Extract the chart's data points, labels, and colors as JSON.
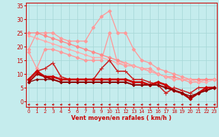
{
  "xlabel": "Vent moyen/en rafales ( km/h )",
  "bg_color": "#c5eced",
  "grid_color": "#a8d8d8",
  "text_color": "#cc0000",
  "ylim": [
    -2,
    36
  ],
  "xlim": [
    -0.3,
    23.3
  ],
  "yticks": [
    0,
    5,
    10,
    15,
    20,
    25,
    30,
    35
  ],
  "xticks": [
    0,
    1,
    2,
    3,
    4,
    5,
    6,
    7,
    8,
    9,
    10,
    11,
    12,
    13,
    14,
    15,
    16,
    17,
    18,
    19,
    20,
    21,
    22,
    23
  ],
  "series": [
    {
      "x": [
        0,
        1,
        2,
        3,
        4,
        5,
        6,
        7,
        8,
        9,
        10,
        11,
        12,
        13,
        14,
        15,
        16,
        17,
        18,
        19,
        20,
        21,
        22,
        23
      ],
      "y": [
        19,
        25,
        25,
        25,
        23,
        22,
        22,
        22,
        27,
        31,
        33,
        25,
        25,
        19,
        15,
        14,
        12,
        11,
        10,
        9,
        8,
        8,
        8,
        8
      ],
      "color": "#ff9999",
      "lw": 1.0,
      "marker": "D",
      "ms": 2.5
    },
    {
      "x": [
        0,
        1,
        2,
        3,
        4,
        5,
        6,
        7,
        8,
        9,
        10,
        11,
        12,
        13,
        14,
        15,
        16,
        17,
        18,
        19,
        20,
        21,
        22,
        23
      ],
      "y": [
        18,
        12,
        19,
        19,
        18,
        17,
        16,
        15,
        15,
        15,
        25,
        14,
        13,
        13,
        12,
        12,
        10,
        9,
        8,
        8,
        7,
        7,
        8,
        8
      ],
      "color": "#ff9999",
      "lw": 1.0,
      "marker": "D",
      "ms": 2.5
    },
    {
      "x": [
        0,
        1,
        2,
        3,
        4,
        5,
        6,
        7,
        8,
        9,
        10,
        11,
        12,
        13,
        14,
        15,
        16,
        17,
        18,
        19,
        20,
        21,
        22,
        23
      ],
      "y": [
        25,
        25,
        24,
        23,
        22,
        21,
        20,
        19,
        18,
        17,
        16,
        15,
        14,
        13,
        12,
        11,
        10,
        9,
        9,
        8,
        8,
        8,
        8,
        8
      ],
      "color": "#ff8888",
      "lw": 1.0,
      "marker": "D",
      "ms": 2.5
    },
    {
      "x": [
        0,
        1,
        2,
        3,
        4,
        5,
        6,
        7,
        8,
        9,
        10,
        11,
        12,
        13,
        14,
        15,
        16,
        17,
        18,
        19,
        20,
        21,
        22,
        23
      ],
      "y": [
        24,
        23,
        22,
        21,
        20,
        19,
        18,
        17,
        16,
        16,
        15,
        14,
        14,
        13,
        12,
        11,
        10,
        9,
        8,
        8,
        8,
        7,
        7,
        8
      ],
      "color": "#ffaaaa",
      "lw": 1.0,
      "marker": "D",
      "ms": 2.0
    },
    {
      "x": [
        0,
        1,
        2,
        3,
        4,
        5,
        6,
        7,
        8,
        9,
        10,
        11,
        12,
        13,
        14,
        15,
        16,
        17,
        18,
        19,
        20,
        21,
        22,
        23
      ],
      "y": [
        8,
        11,
        12,
        14,
        9,
        8,
        8,
        8,
        8,
        12,
        15,
        11,
        11,
        8,
        8,
        7,
        6,
        3,
        5,
        4,
        3,
        5,
        5,
        5
      ],
      "color": "#cc2222",
      "lw": 1.2,
      "marker": "+",
      "ms": 4
    },
    {
      "x": [
        0,
        1,
        2,
        3,
        4,
        5,
        6,
        7,
        8,
        9,
        10,
        11,
        12,
        13,
        14,
        15,
        16,
        17,
        18,
        19,
        20,
        21,
        22,
        23
      ],
      "y": [
        8,
        11,
        9,
        9,
        8,
        8,
        8,
        8,
        8,
        8,
        8,
        8,
        8,
        7,
        7,
        6,
        7,
        6,
        4,
        3,
        1,
        3,
        5,
        5
      ],
      "color": "#cc0000",
      "lw": 2.0,
      "marker": "D",
      "ms": 2.5
    },
    {
      "x": [
        0,
        1,
        2,
        3,
        4,
        5,
        6,
        7,
        8,
        9,
        10,
        11,
        12,
        13,
        14,
        15,
        16,
        17,
        18,
        19,
        20,
        21,
        22,
        23
      ],
      "y": [
        7,
        10,
        9,
        8,
        7,
        7,
        7,
        7,
        7,
        7,
        7,
        7,
        7,
        6,
        6,
        6,
        6,
        5,
        4,
        3,
        1,
        3,
        4,
        5
      ],
      "color": "#aa0000",
      "lw": 1.5,
      "marker": "D",
      "ms": 2.0
    },
    {
      "x": [
        0,
        1,
        2,
        3,
        4,
        5,
        6,
        7,
        8,
        9,
        10,
        11,
        12,
        13,
        14,
        15,
        16,
        17,
        18,
        19,
        20,
        21,
        22,
        23
      ],
      "y": [
        7,
        8,
        8,
        8,
        7,
        7,
        7,
        7,
        7,
        7,
        7,
        7,
        7,
        6,
        6,
        6,
        6,
        5,
        4,
        3,
        2,
        3,
        4,
        5
      ],
      "color": "#880000",
      "lw": 1.0,
      "marker": "D",
      "ms": 1.8
    }
  ],
  "arrow_color": "#cc0000"
}
